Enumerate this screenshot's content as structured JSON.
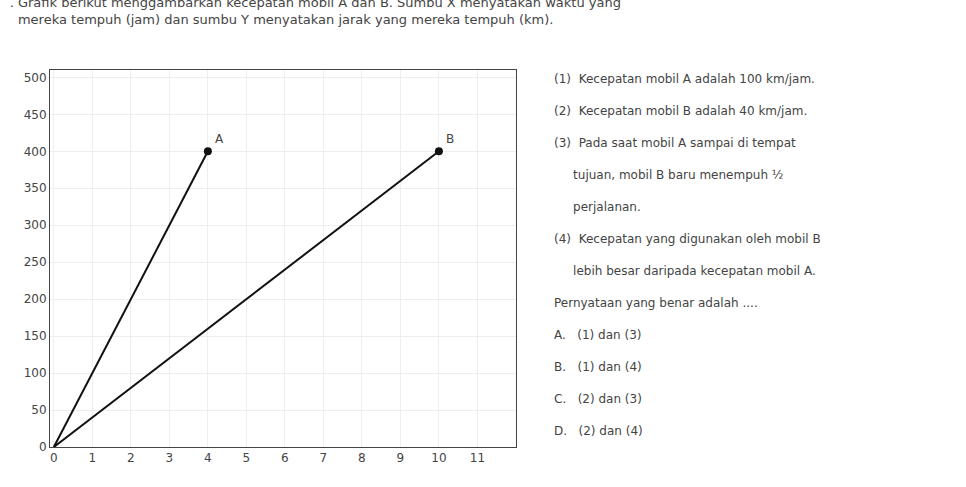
{
  "chart_data": {
    "type": "line",
    "title": ". Grafik berikut menggambarkan kecepatan mobil A dan B. Sumbu X menyatakan waktu yang",
    "subtitle": "  mereka tempuh (jam) dan sumbu Y menyatakan jarak yang mereka tempuh (km).",
    "series": [
      {
        "type": "line",
        "color": "#111111",
        "x": [
          0,
          4
        ],
        "values": [
          0,
          400
        ]
      },
      {
        "type": "line",
        "color": "#111111",
        "x": [
          0,
          10
        ],
        "values": [
          0,
          400
        ]
      },
      {
        "type": "scatter",
        "marker": "circle",
        "color": "#111111",
        "x": [
          4
        ],
        "values": [
          400
        ]
      },
      {
        "type": "scatter",
        "marker": "circle",
        "color": "#111111",
        "x": [
          10
        ],
        "values": [
          400
        ]
      }
    ],
    "annotations": [
      {
        "text": "A",
        "x": 4,
        "y": 400
      },
      {
        "text": "B",
        "x": 10,
        "y": 400
      }
    ],
    "text_lines": [
      "(1)  Kecepatan mobil A adalah 100 km/jam.",
      "(2)  Kecepatan mobil B adalah 40 km/jam.",
      "(3)  Pada saat mobil A sampai di tempat",
      "     tujuan, mobil B baru menempuh ½",
      "     perjalanan.",
      "(4)  Kecepatan yang digunakan oleh mobil B",
      "     lebih besar daripada kecepatan mobil A.",
      "Pernyataan yang benar adalah ....",
      "A.   (1) dan (3)",
      "B.   (1) dan (4)",
      "C.   (2) dan (3)",
      "D.   (2) dan (4)"
    ],
    "xlim": [
      -0.1,
      12
    ],
    "xticks": [
      0,
      1,
      2,
      3,
      4,
      5,
      6,
      7,
      8,
      9,
      10,
      11
    ],
    "ylim": [
      0,
      510
    ],
    "yticks": [
      0,
      50,
      100,
      150,
      200,
      250,
      300,
      350,
      400,
      450,
      500
    ],
    "grid": true
  }
}
